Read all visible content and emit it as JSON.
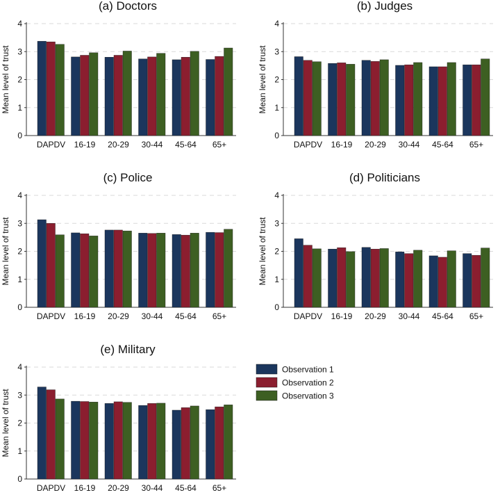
{
  "colors": {
    "Observation 1": "#1b365d",
    "Observation 2": "#8b1e2f",
    "Observation 3": "#3d5f22",
    "grid": "#d9d9d9",
    "axis": "#333333"
  },
  "legend": {
    "entries": [
      "Observation 1",
      "Observation 2",
      "Observation 3"
    ]
  },
  "chart_data": [
    {
      "type": "bar",
      "title": "(a) Doctors",
      "xlabel": "",
      "ylabel": "Mean level of trust",
      "ylim": [
        0,
        4
      ],
      "yticks": [
        "0",
        "1",
        "2",
        "3",
        "4"
      ],
      "categories": [
        "DAPDV",
        "16-19",
        "20-29",
        "30-44",
        "45-64",
        "65+"
      ],
      "series": [
        {
          "name": "Observation 1",
          "values": [
            3.37,
            2.81,
            2.8,
            2.74,
            2.71,
            2.72
          ]
        },
        {
          "name": "Observation 2",
          "values": [
            3.35,
            2.87,
            2.87,
            2.81,
            2.8,
            2.83
          ]
        },
        {
          "name": "Observation 3",
          "values": [
            3.26,
            2.96,
            3.02,
            2.94,
            3.01,
            3.13
          ]
        }
      ]
    },
    {
      "type": "bar",
      "title": "(b) Judges",
      "xlabel": "",
      "ylabel": "Mean level of trust",
      "ylim": [
        0,
        4
      ],
      "yticks": [
        "0",
        "1",
        "2",
        "3",
        "4"
      ],
      "categories": [
        "DAPDV",
        "16-19",
        "20-29",
        "30-44",
        "45-64",
        "65+"
      ],
      "series": [
        {
          "name": "Observation 1",
          "values": [
            2.82,
            2.58,
            2.69,
            2.51,
            2.46,
            2.53
          ]
        },
        {
          "name": "Observation 2",
          "values": [
            2.69,
            2.6,
            2.65,
            2.53,
            2.46,
            2.53
          ]
        },
        {
          "name": "Observation 3",
          "values": [
            2.64,
            2.55,
            2.71,
            2.61,
            2.61,
            2.74
          ]
        }
      ]
    },
    {
      "type": "bar",
      "title": "(c) Police",
      "xlabel": "",
      "ylabel": "Mean level of trust",
      "ylim": [
        0,
        4
      ],
      "yticks": [
        "0",
        "1",
        "2",
        "3",
        "4"
      ],
      "categories": [
        "DAPDV",
        "16-19",
        "20-29",
        "30-44",
        "45-64",
        "65+"
      ],
      "series": [
        {
          "name": "Observation 1",
          "values": [
            3.13,
            2.66,
            2.76,
            2.65,
            2.6,
            2.68
          ]
        },
        {
          "name": "Observation 2",
          "values": [
            3.0,
            2.63,
            2.76,
            2.64,
            2.58,
            2.67
          ]
        },
        {
          "name": "Observation 3",
          "values": [
            2.59,
            2.55,
            2.73,
            2.65,
            2.65,
            2.79
          ]
        }
      ]
    },
    {
      "type": "bar",
      "title": "(d) Politicians",
      "xlabel": "",
      "ylabel": "Mean level of trust",
      "ylim": [
        0,
        4
      ],
      "yticks": [
        "0",
        "1",
        "2",
        "3",
        "4"
      ],
      "categories": [
        "DAPDV",
        "16-19",
        "20-29",
        "30-44",
        "45-64",
        "65+"
      ],
      "series": [
        {
          "name": "Observation 1",
          "values": [
            2.45,
            2.08,
            2.14,
            1.98,
            1.84,
            1.92
          ]
        },
        {
          "name": "Observation 2",
          "values": [
            2.22,
            2.13,
            2.08,
            1.92,
            1.79,
            1.86
          ]
        },
        {
          "name": "Observation 3",
          "values": [
            2.09,
            1.99,
            2.1,
            2.04,
            2.02,
            2.12
          ]
        }
      ]
    },
    {
      "type": "bar",
      "title": "(e) Military",
      "xlabel": "",
      "ylabel": "Mean level of trust",
      "ylim": [
        0,
        4
      ],
      "yticks": [
        "0",
        "1",
        "2",
        "3",
        "4"
      ],
      "categories": [
        "DAPDV",
        "16-19",
        "20-29",
        "30-44",
        "45-64",
        "65+"
      ],
      "series": [
        {
          "name": "Observation 1",
          "values": [
            3.29,
            2.78,
            2.7,
            2.63,
            2.46,
            2.48
          ]
        },
        {
          "name": "Observation 2",
          "values": [
            3.19,
            2.77,
            2.76,
            2.7,
            2.55,
            2.58
          ]
        },
        {
          "name": "Observation 3",
          "values": [
            2.86,
            2.75,
            2.74,
            2.71,
            2.61,
            2.65
          ]
        }
      ]
    }
  ]
}
